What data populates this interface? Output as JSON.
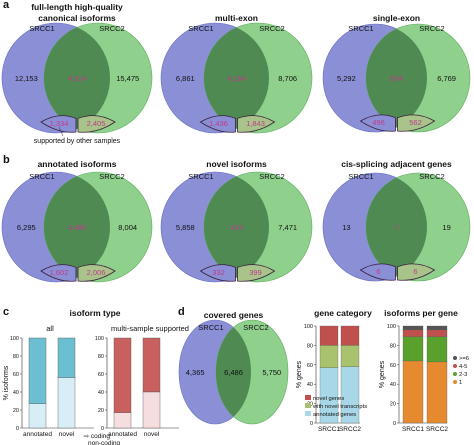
{
  "colors": {
    "src1": "#8a8fd6",
    "src2": "#8fd08c",
    "overlap": "#4e8a52",
    "pink_text": "#c23b8c",
    "sup_stroke": "#3a1f3a",
    "teal": "#6cbfd0",
    "light_blue": "#d8eef6",
    "red": "#c86060",
    "light_pink": "#f6dede",
    "novel_genes": "#c0504d",
    "novel_tx": "#a9c26e",
    "annotated": "#a8d8e8",
    "ipg_6": "#555555",
    "ipg_45": "#c0504d",
    "ipg_23": "#5aa02c",
    "ipg_1": "#e58a2e"
  },
  "panels": {
    "a": {
      "letter": "a"
    },
    "b": {
      "letter": "b"
    },
    "c": {
      "letter": "c"
    },
    "d": {
      "letter": "d"
    }
  },
  "venn": [
    {
      "title1": "full-length high-quality",
      "title2": "canonical isoforms",
      "set1": "SRCC1",
      "set2": "SRCC2",
      "left": "12,153",
      "mid": "4,914",
      "right": "15,475",
      "sup_left": "1,334",
      "sup_right": "2,405",
      "annotation": "supported by other samples"
    },
    {
      "title1": "multi-exon",
      "title2": "",
      "set1": "SRCC1",
      "set2": "SRCC2",
      "left": "6,861",
      "mid": "4,264",
      "right": "8,706",
      "sup_left": "1,436",
      "sup_right": "1,843"
    },
    {
      "title1": "single-exon",
      "title2": "",
      "set1": "SRCC1",
      "set2": "SRCC2",
      "left": "5,292",
      "mid": "654",
      "right": "6,769",
      "sup_left": "496",
      "sup_right": "562"
    },
    {
      "title1": "annotated isoforms",
      "title2": "",
      "set1": "SRCC1",
      "set2": "SRCC2",
      "left": "6,295",
      "mid": "4,485",
      "right": "8,004",
      "sup_left": "1,602",
      "sup_right": "2,006"
    },
    {
      "title1": "novel isoforms",
      "title2": "",
      "set1": "SRCC1",
      "set2": "SRCC2",
      "left": "5,858",
      "mid": "433",
      "right": "7,471",
      "sup_left": "332",
      "sup_right": "399"
    },
    {
      "title1": "cis-splicing adjacent genes",
      "title2": "",
      "set1": "SRCC1",
      "set2": "SRCC2",
      "left": "13",
      "mid": "7",
      "right": "19",
      "sup_left": "6",
      "sup_right": "6"
    },
    {
      "title1": "covered genes",
      "title2": "",
      "set1": "SRCC1",
      "set2": "SRCC2",
      "left": "4,365",
      "mid": "6,486",
      "right": "5,750"
    }
  ],
  "isoform_type": {
    "title": "isoform type",
    "ylabel": "% isoforms",
    "yticks": [
      "0",
      "20",
      "40",
      "60",
      "80",
      "100"
    ],
    "groups": [
      {
        "name": "all",
        "categories": [
          "annotated",
          "novel"
        ],
        "lower_values": [
          27,
          56
        ]
      },
      {
        "name": "multi-sample supported",
        "categories": [
          "annotated",
          "novel"
        ],
        "lower_values": [
          17,
          40
        ]
      }
    ],
    "legend": [
      {
        "label": "coding"
      },
      {
        "label": "non-coding"
      }
    ]
  },
  "chart_data": [
    {
      "type": "bar",
      "title": "gene category",
      "ylabel": "% genes",
      "categories": [
        "SRCC1",
        "SRCC2"
      ],
      "yticks": [
        "0",
        "20",
        "40",
        "60",
        "80",
        "100"
      ],
      "ylim": [
        0,
        100
      ],
      "series": [
        {
          "name": "annotated genes",
          "values": [
            57,
            58
          ]
        },
        {
          "name": "with novel transcripts",
          "values": [
            23,
            22
          ]
        },
        {
          "name": "novel genes",
          "values": [
            20,
            20
          ]
        }
      ],
      "legend_position": "bottom"
    },
    {
      "type": "bar",
      "title": "isoforms per gene",
      "ylabel": "% genes",
      "categories": [
        "SRCC1",
        "SRCC2"
      ],
      "yticks": [
        "0",
        "20",
        "40",
        "60",
        "80",
        "100"
      ],
      "ylim": [
        0,
        100
      ],
      "series": [
        {
          "name": "1",
          "values": [
            64,
            63
          ]
        },
        {
          "name": "2-3",
          "values": [
            25,
            26
          ]
        },
        {
          "name": "4-5",
          "values": [
            7,
            7
          ]
        },
        {
          "name": ">=6",
          "values": [
            4,
            4
          ]
        }
      ],
      "legend_position": "right"
    }
  ]
}
